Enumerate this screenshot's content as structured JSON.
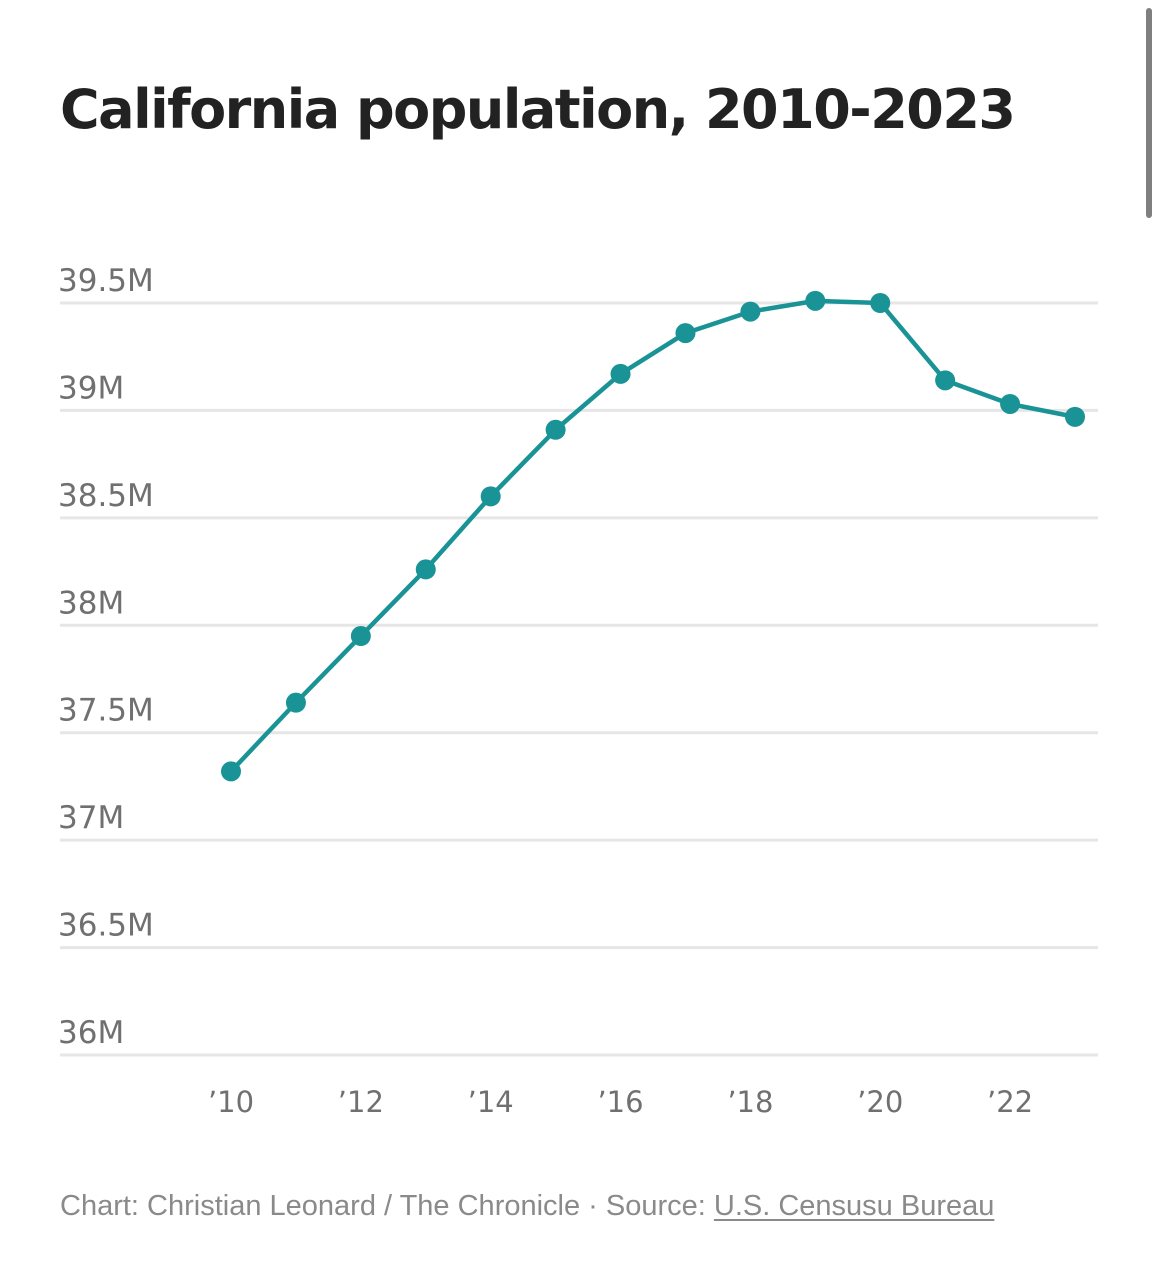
{
  "chart_data": {
    "type": "line",
    "title": "California population, 2010-2023",
    "xlabel": "",
    "ylabel": "",
    "x": [
      2010,
      2011,
      2012,
      2013,
      2014,
      2015,
      2016,
      2017,
      2018,
      2019,
      2020,
      2021,
      2022,
      2023
    ],
    "series": [
      {
        "name": "California population",
        "color": "#1a9396",
        "values": [
          37.32,
          37.64,
          37.95,
          38.26,
          38.6,
          38.91,
          39.17,
          39.36,
          39.46,
          39.51,
          39.5,
          39.14,
          39.03,
          38.97
        ]
      }
    ],
    "ylim": [
      36,
      39.5
    ],
    "yticks": [
      36,
      36.5,
      37,
      37.5,
      38,
      38.5,
      39,
      39.5
    ],
    "ytick_labels": [
      "36M",
      "36.5M",
      "37M",
      "37.5M",
      "38M",
      "38.5M",
      "39M",
      "39.5M"
    ],
    "xlim": [
      2010,
      2023
    ],
    "xticks": [
      2010,
      2012,
      2014,
      2016,
      2018,
      2020,
      2022
    ],
    "xtick_labels": [
      "’10",
      "’12",
      "’14",
      "’16",
      "’18",
      "’20",
      "’22"
    ],
    "grid": "horizontal",
    "markers": true
  },
  "credit": {
    "prefix": "Chart: Christian Leonard / The Chronicle · Source: ",
    "source_link": "U.S. Censusu Bureau"
  },
  "colors": {
    "line": "#1a9396",
    "grid": "#e6e6e6",
    "title": "#222222",
    "tick_text": "#707070",
    "credit_text": "#8a8a8a"
  }
}
